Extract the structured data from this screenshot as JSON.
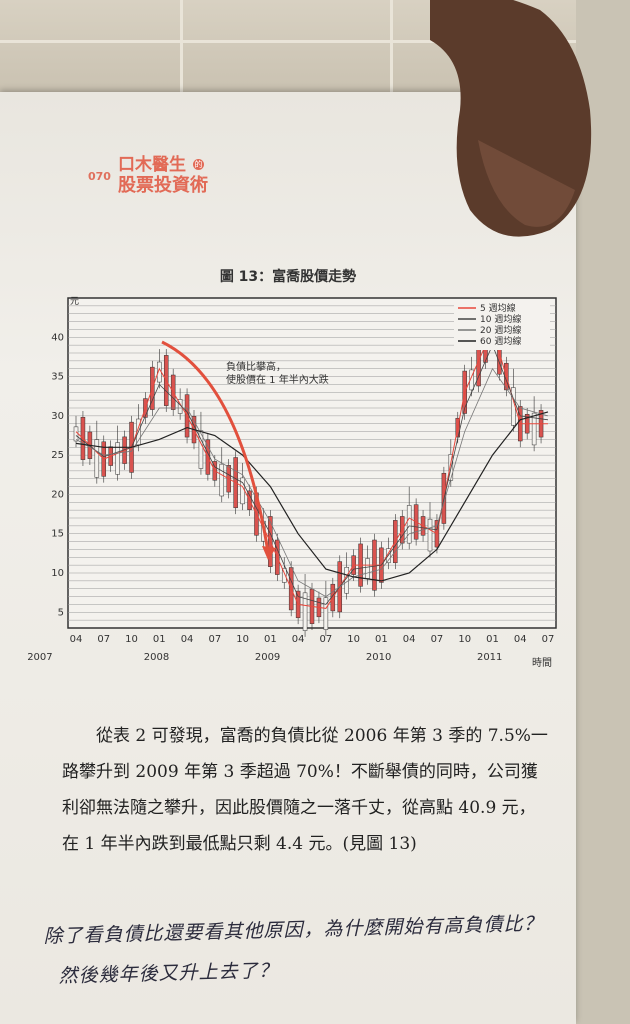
{
  "header": {
    "page_number": "070",
    "title_line1": "口木醫生",
    "badge": "的",
    "title_line2": "股票投資術"
  },
  "figure": {
    "title": "圖 13：富喬股價走勢"
  },
  "chart_data": {
    "type": "line",
    "ylabel": "元",
    "xlabel": "時間",
    "ylim": [
      3,
      45
    ],
    "y_ticks": [
      5,
      10,
      15,
      20,
      25,
      30,
      35,
      40
    ],
    "x_tick_labels": [
      "04",
      "07",
      "10",
      "01",
      "04",
      "07",
      "10",
      "01",
      "04",
      "07",
      "10",
      "01",
      "04",
      "07",
      "10",
      "01",
      "04",
      "07"
    ],
    "year_labels": [
      "2007",
      "2008",
      "2009",
      "2010",
      "2011"
    ],
    "legend": [
      "5 週均線",
      "10 週均線",
      "20 週均線",
      "60 週均線"
    ],
    "legend_placement": "top-right",
    "annotation_line1": "負債比攀高，",
    "annotation_line2": "使股價在 1 年半內大跌",
    "x": [
      0,
      1,
      2,
      3,
      4,
      5,
      6,
      7,
      8,
      9,
      10,
      11,
      12,
      13,
      14,
      15,
      16,
      17
    ],
    "series": [
      {
        "name": "5 週均線",
        "values": [
          28,
          24.5,
          26,
          36,
          30,
          23,
          21,
          14,
          6,
          5.5,
          11,
          11,
          17,
          15,
          33,
          41,
          29,
          29
        ]
      },
      {
        "name": "10 週均線",
        "values": [
          27.5,
          24.8,
          26,
          34,
          30.5,
          23.5,
          21.5,
          15,
          7,
          6,
          10.5,
          11,
          16,
          15.5,
          31,
          39,
          30,
          29.5
        ]
      },
      {
        "name": "20 週均線",
        "values": [
          27,
          25,
          25.5,
          31,
          31,
          24.5,
          22.5,
          16.5,
          9,
          7,
          9.5,
          10.5,
          15,
          16,
          28,
          36,
          31,
          30
        ]
      },
      {
        "name": "60 週均線",
        "values": [
          26.5,
          26,
          26,
          27,
          28.5,
          27.5,
          25,
          21,
          15,
          10.5,
          9.5,
          9,
          10,
          13,
          19,
          25,
          29.5,
          30.5
        ]
      }
    ],
    "colors": {
      "ma5": "#e8473c",
      "ma10": "#444444",
      "ma20": "#777777",
      "ma60": "#222222",
      "candle": "#d9534f",
      "arrow": "#e2503d"
    },
    "grid": true
  },
  "body": {
    "paragraph": "從表 2 可發現，富喬的負債比從 2006 年第 3 季的 7.5%一路攀升到 2009 年第 3 季超過 70%！不斷舉債的同時，公司獲利卻無法隨之攀升，因此股價隨之一落千丈，從高點 40.9 元，在 1 年半內跌到最低點只剩 4.4 元。(見圖 13)"
  },
  "handwriting": {
    "line1": "除了看負債比還要看其他原因，為什麼開始有高負債比？",
    "line2": "然後幾年後又升上去了？"
  }
}
